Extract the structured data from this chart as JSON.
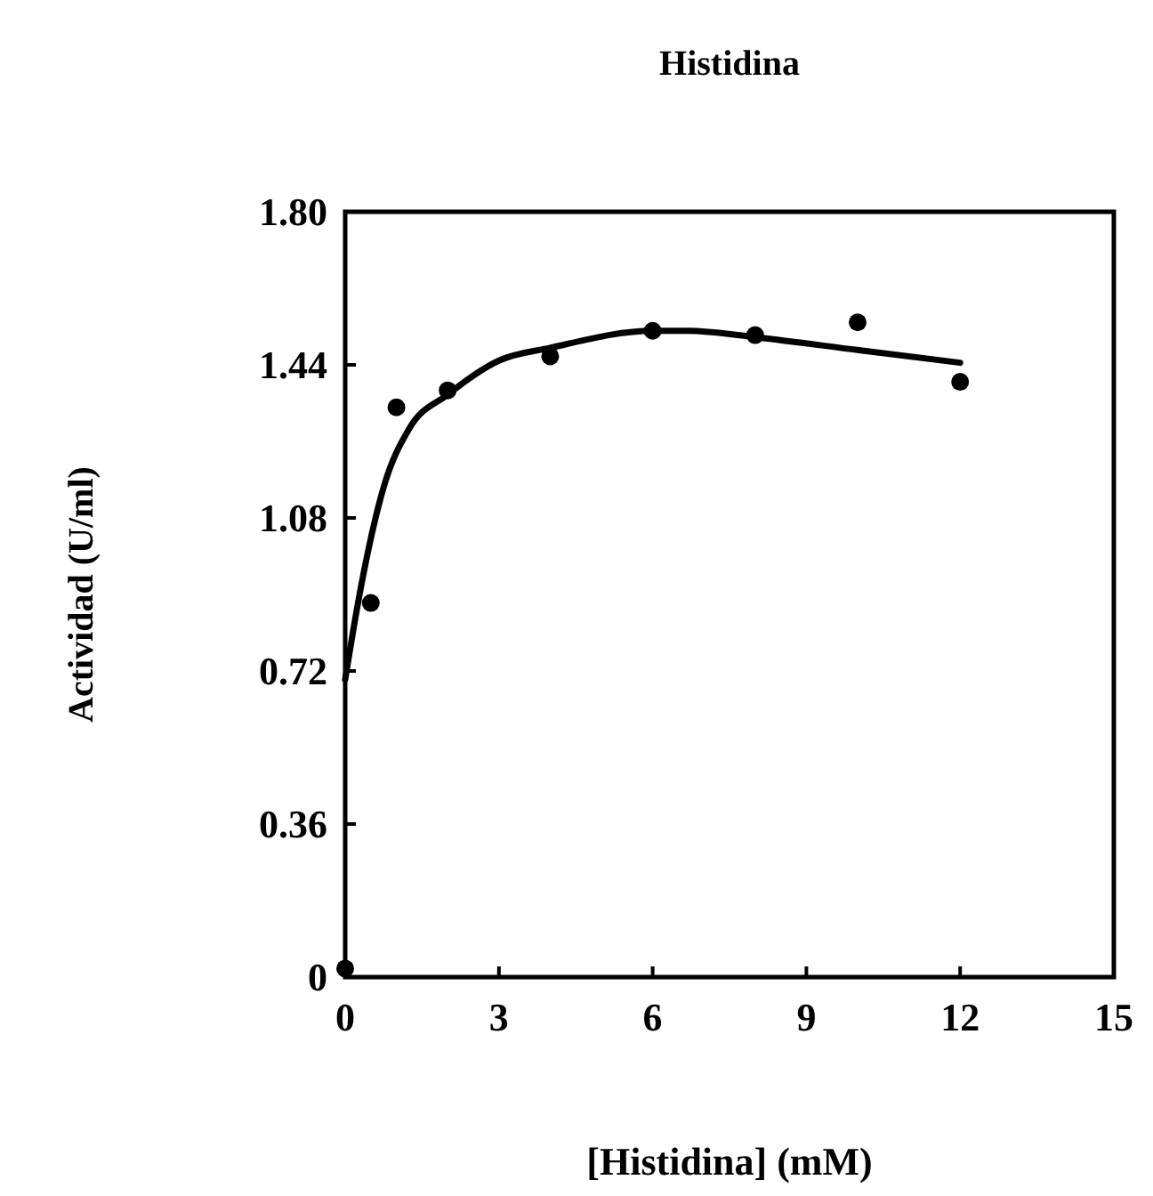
{
  "chart_data": {
    "type": "scatter",
    "title": "Histidina",
    "xlabel": "[Histidina]  (mM)",
    "ylabel": "Actividad  (U/ml)",
    "xlim": [
      0,
      15
    ],
    "xticks": [
      0,
      3,
      6,
      9,
      12,
      15
    ],
    "ylim": [
      0,
      1.8
    ],
    "yticks": [
      0,
      0.36,
      0.72,
      1.08,
      1.44,
      {
        "value": 1.8,
        "label": "1.80"
      }
    ],
    "marker": "circle",
    "series": [
      {
        "color": "#000000",
        "x": [
          0,
          0.5,
          1,
          2,
          4,
          6,
          8,
          10,
          12
        ],
        "values": [
          0.02,
          0.88,
          1.34,
          1.38,
          1.46,
          1.52,
          1.51,
          1.54,
          1.4
        ]
      },
      {
        "type": "line",
        "color": "#000000",
        "marker": "none",
        "line_style": "solid",
        "x": [
          0,
          0.25,
          0.77,
          1.25,
          2,
          3,
          4,
          6,
          6.7,
          8,
          10,
          12
        ],
        "values": [
          0.7,
          0.88,
          1.16,
          1.29,
          1.37,
          1.45,
          1.48,
          1.52,
          1.52,
          1.505,
          1.475,
          1.445
        ]
      }
    ]
  }
}
